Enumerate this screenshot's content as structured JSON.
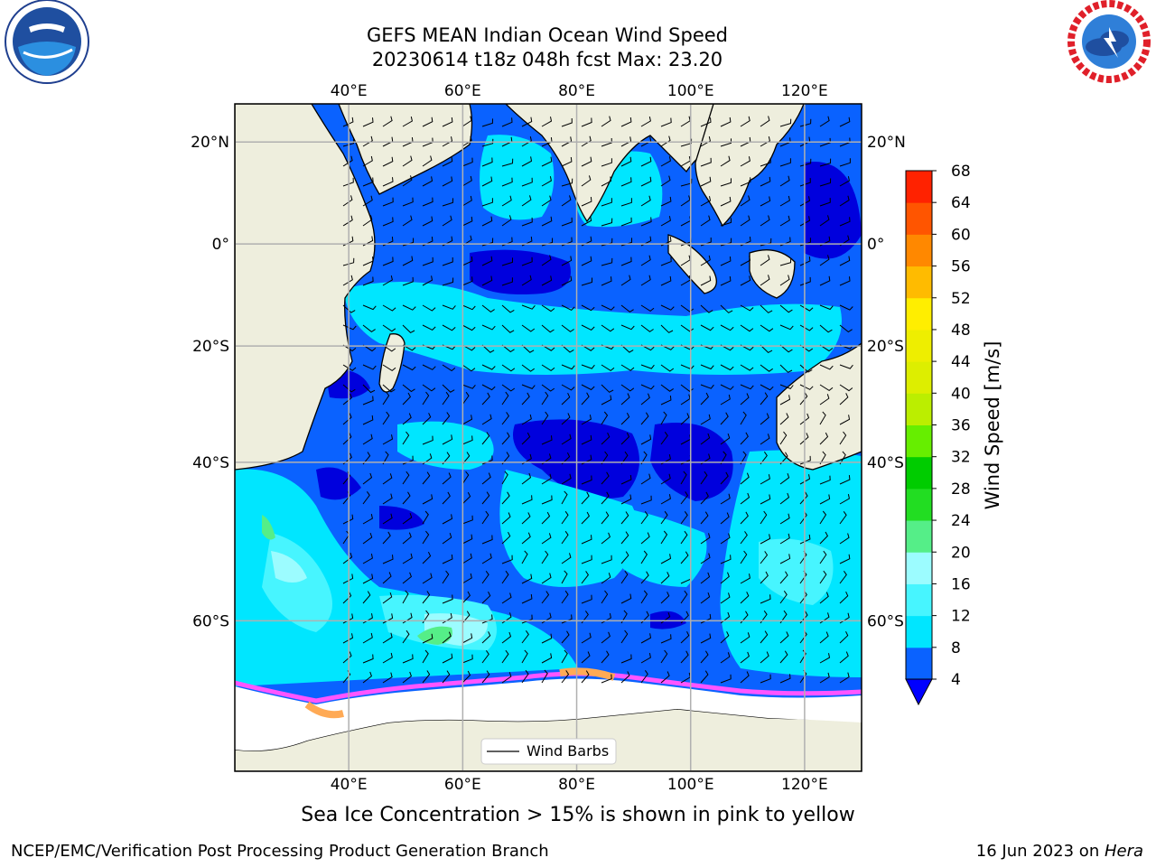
{
  "header": {
    "title_line1": "GEFS MEAN Indian Ocean Wind Speed",
    "title_line2": "20230614 t18z 048h fcst   Max: 23.20"
  },
  "logos": {
    "left": "noaa-logo",
    "right": "nws-logo"
  },
  "map": {
    "lon_labels": [
      "40°E",
      "60°E",
      "80°E",
      "100°E",
      "120°E"
    ],
    "lat_labels": [
      "20°N",
      "0°",
      "20°S",
      "40°S",
      "60°S"
    ],
    "lon_values": [
      40,
      60,
      80,
      100,
      120
    ],
    "lat_values": [
      20,
      0,
      -20,
      -40,
      -60
    ],
    "lon_range": [
      20,
      130
    ],
    "lat_range": [
      -72,
      27
    ],
    "colors": {
      "land": "#eeeedd",
      "sea_ice": "#ffffff",
      "ice_edge_pink": "#ff55ff",
      "ice_edge_orange": "#ffaa55"
    },
    "legend_label": "Wind Barbs"
  },
  "colorbar": {
    "label": "Wind Speed [m/s]",
    "ticks": [
      "4",
      "8",
      "12",
      "16",
      "20",
      "24",
      "28",
      "32",
      "36",
      "40",
      "44",
      "48",
      "52",
      "56",
      "60",
      "64",
      "68"
    ],
    "colors": [
      "#0a62ff",
      "#00e6ff",
      "#47f5ff",
      "#9cfcff",
      "#55ee88",
      "#22dd22",
      "#00cc00",
      "#66ee00",
      "#bbee00",
      "#ddee00",
      "#eeee00",
      "#ffee00",
      "#ffbb00",
      "#ff8800",
      "#ff5500",
      "#ff2200"
    ],
    "under_color": "#0000ff"
  },
  "caption": "Sea Ice Concentration > 15% is shown in pink to yellow",
  "footer": {
    "left": "NCEP/EMC/Verification Post Processing Product Generation Branch",
    "right_date": "16 Jun 2023 on ",
    "right_host": "Hera"
  }
}
